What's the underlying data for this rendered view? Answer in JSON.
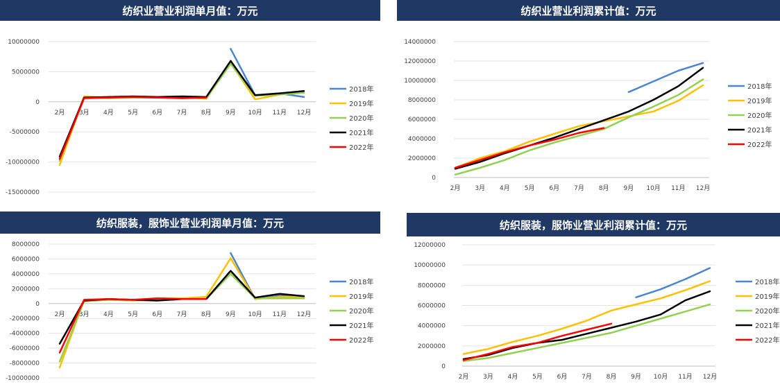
{
  "colors": {
    "banner": "#1f3864",
    "s2018": "#4a86d0",
    "s2019": "#ffc000",
    "s2020": "#92d050",
    "s2021": "#000000",
    "s2022": "#ff0000"
  },
  "chart_data": [
    {
      "type": "line",
      "title": "纺织业营业利润单月值：万元",
      "categories": [
        "2月",
        "3月",
        "4月",
        "5月",
        "6月",
        "7月",
        "8月",
        "9月",
        "10月",
        "11月",
        "12月"
      ],
      "ylim": [
        -15000000,
        10000000
      ],
      "yticks": [
        "10000000",
        "5000000",
        "0",
        "-5000000",
        "-10000000",
        "-15000000"
      ],
      "ytick_values": [
        10000000,
        5000000,
        0,
        -5000000,
        -10000000,
        -15000000
      ],
      "legend_position": "right",
      "series": [
        {
          "name": "2018年",
          "color_key": "s2018",
          "values": [
            null,
            null,
            null,
            null,
            null,
            null,
            null,
            8800000,
            1100000,
            1400000,
            800000
          ]
        },
        {
          "name": "2019年",
          "color_key": "s2019",
          "values": [
            -10500000,
            900000,
            700000,
            800000,
            700000,
            800000,
            500000,
            6500000,
            400000,
            1200000,
            1700000
          ]
        },
        {
          "name": "2020年",
          "color_key": "s2020",
          "values": [
            -9800000,
            700000,
            600000,
            700000,
            700000,
            700000,
            600000,
            6300000,
            1000000,
            1200000,
            1500000
          ]
        },
        {
          "name": "2021年",
          "color_key": "s2021",
          "values": [
            -9100000,
            700000,
            800000,
            900000,
            800000,
            900000,
            800000,
            6800000,
            1100000,
            1400000,
            1800000
          ]
        },
        {
          "name": "2022年",
          "color_key": "s2022",
          "values": [
            -9500000,
            600000,
            700000,
            800000,
            700000,
            600000,
            700000,
            null,
            null,
            null,
            null
          ]
        }
      ]
    },
    {
      "type": "line",
      "title": "纺织业营业利润累计值：万元",
      "categories": [
        "2月",
        "3月",
        "4月",
        "5月",
        "6月",
        "7月",
        "8月",
        "9月",
        "10月",
        "11月",
        "12月"
      ],
      "ylim": [
        0,
        14000000
      ],
      "yticks": [
        "14000000",
        "12000000",
        "10000000",
        "8000000",
        "6000000",
        "4000000",
        "2000000",
        "0"
      ],
      "ytick_values": [
        14000000,
        12000000,
        10000000,
        8000000,
        6000000,
        4000000,
        2000000,
        0
      ],
      "legend_position": "right",
      "series": [
        {
          "name": "2018年",
          "color_key": "s2018",
          "values": [
            null,
            null,
            null,
            null,
            null,
            null,
            null,
            8800000,
            9900000,
            11000000,
            11800000
          ]
        },
        {
          "name": "2019年",
          "color_key": "s2019",
          "values": [
            1000000,
            2000000,
            2700000,
            3700000,
            4500000,
            5300000,
            5800000,
            6300000,
            6800000,
            7900000,
            9500000
          ]
        },
        {
          "name": "2020年",
          "color_key": "s2020",
          "values": [
            300000,
            1000000,
            1800000,
            2800000,
            3600000,
            4300000,
            5000000,
            6200000,
            7300000,
            8500000,
            10100000
          ]
        },
        {
          "name": "2021年",
          "color_key": "s2021",
          "values": [
            900000,
            1600000,
            2500000,
            3300000,
            4100000,
            5000000,
            5900000,
            6800000,
            8000000,
            9400000,
            11300000
          ]
        },
        {
          "name": "2022年",
          "color_key": "s2022",
          "values": [
            1000000,
            1800000,
            2600000,
            3300000,
            3900000,
            4600000,
            5100000,
            null,
            null,
            null,
            null
          ]
        }
      ]
    },
    {
      "type": "line",
      "title": "纺织服装，服饰业营业利润单月值：万元",
      "categories": [
        "2月",
        "3月",
        "4月",
        "5月",
        "6月",
        "7月",
        "8月",
        "9月",
        "10月",
        "11月",
        "12月"
      ],
      "ylim": [
        -10000000,
        8000000
      ],
      "yticks": [
        "8000000",
        "6000000",
        "4000000",
        "2000000",
        "0",
        "-2000000",
        "-4000000",
        "-6000000",
        "-8000000",
        "-10000000"
      ],
      "ytick_values": [
        8000000,
        6000000,
        4000000,
        2000000,
        0,
        -2000000,
        -4000000,
        -6000000,
        -8000000,
        -10000000
      ],
      "legend_position": "right",
      "series": [
        {
          "name": "2018年",
          "color_key": "s2018",
          "values": [
            null,
            null,
            null,
            null,
            null,
            null,
            null,
            6800000,
            600000,
            1100000,
            800000
          ]
        },
        {
          "name": "2019年",
          "color_key": "s2019",
          "values": [
            -8600000,
            500000,
            600000,
            500000,
            700000,
            700000,
            900000,
            6100000,
            600000,
            900000,
            900000
          ]
        },
        {
          "name": "2020年",
          "color_key": "s2020",
          "values": [
            -7800000,
            300000,
            500000,
            400000,
            500000,
            600000,
            600000,
            4000000,
            700000,
            700000,
            700000
          ]
        },
        {
          "name": "2021年",
          "color_key": "s2021",
          "values": [
            -5400000,
            400000,
            600000,
            500000,
            400000,
            600000,
            600000,
            4400000,
            800000,
            1300000,
            1000000
          ]
        },
        {
          "name": "2022年",
          "color_key": "s2022",
          "values": [
            -6600000,
            500000,
            600000,
            500000,
            700000,
            600000,
            600000,
            null,
            null,
            null,
            null
          ]
        }
      ]
    },
    {
      "type": "line",
      "title": "纺织服装，服饰业营业利润累计值：万元",
      "categories": [
        "2月",
        "3月",
        "4月",
        "5月",
        "6月",
        "7月",
        "8月",
        "9月",
        "10月",
        "11月",
        "12月"
      ],
      "ylim": [
        0,
        12000000
      ],
      "yticks": [
        "12000000",
        "10000000",
        "8000000",
        "6000000",
        "4000000",
        "2000000",
        "0"
      ],
      "ytick_values": [
        12000000,
        10000000,
        8000000,
        6000000,
        4000000,
        2000000,
        0
      ],
      "legend_position": "right",
      "series": [
        {
          "name": "2018年",
          "color_key": "s2018",
          "values": [
            null,
            null,
            null,
            null,
            null,
            null,
            null,
            6800000,
            7600000,
            8600000,
            9700000
          ]
        },
        {
          "name": "2019年",
          "color_key": "s2019",
          "values": [
            1200000,
            1700000,
            2400000,
            3000000,
            3700000,
            4500000,
            5500000,
            6100000,
            6700000,
            7500000,
            8400000
          ]
        },
        {
          "name": "2020年",
          "color_key": "s2020",
          "values": [
            500000,
            800000,
            1300000,
            1800000,
            2300000,
            2800000,
            3300000,
            4000000,
            4700000,
            5400000,
            6100000
          ]
        },
        {
          "name": "2021年",
          "color_key": "s2021",
          "values": [
            700000,
            1100000,
            1800000,
            2300000,
            2600000,
            3200000,
            3800000,
            4400000,
            5100000,
            6500000,
            7400000
          ]
        },
        {
          "name": "2022年",
          "color_key": "s2022",
          "values": [
            600000,
            1200000,
            1900000,
            2300000,
            3000000,
            3600000,
            4200000,
            null,
            null,
            null,
            null
          ]
        }
      ]
    }
  ]
}
